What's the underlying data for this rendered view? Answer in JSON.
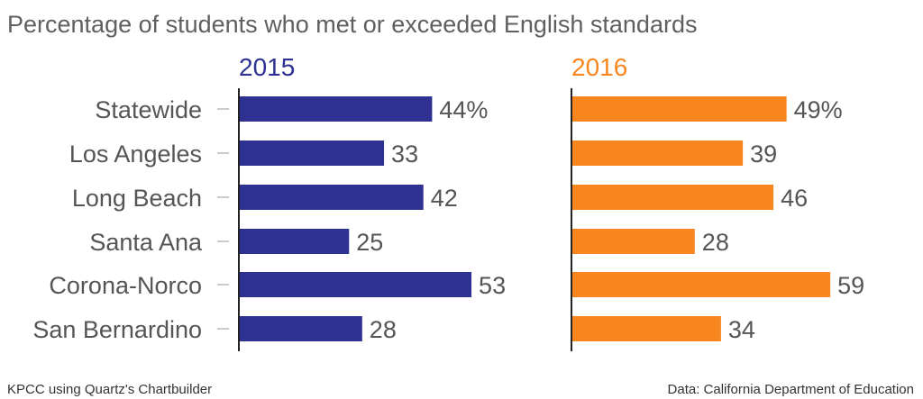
{
  "chart_data": {
    "type": "bar",
    "title": "Percentage of students who met or exceeded English standards",
    "categories": [
      "Statewide",
      "Los Angeles",
      "Long Beach",
      "Santa Ana",
      "Corona-Norco",
      "San Bernardino"
    ],
    "series": [
      {
        "name": "2015",
        "color": "#2e3192",
        "values": [
          44,
          33,
          42,
          25,
          53,
          28
        ],
        "labels": [
          "44%",
          "33",
          "42",
          "25",
          "53",
          "28"
        ]
      },
      {
        "name": "2016",
        "color": "#f7861e",
        "values": [
          49,
          39,
          46,
          28,
          59,
          34
        ],
        "labels": [
          "49%",
          "39",
          "46",
          "28",
          "59",
          "34"
        ]
      }
    ],
    "orientation": "horizontal",
    "xlim": [
      0,
      60
    ],
    "grid": false
  },
  "footer": {
    "left": "KPCC using Quartz's Chartbuilder",
    "right": "Data: California Department of Education"
  }
}
